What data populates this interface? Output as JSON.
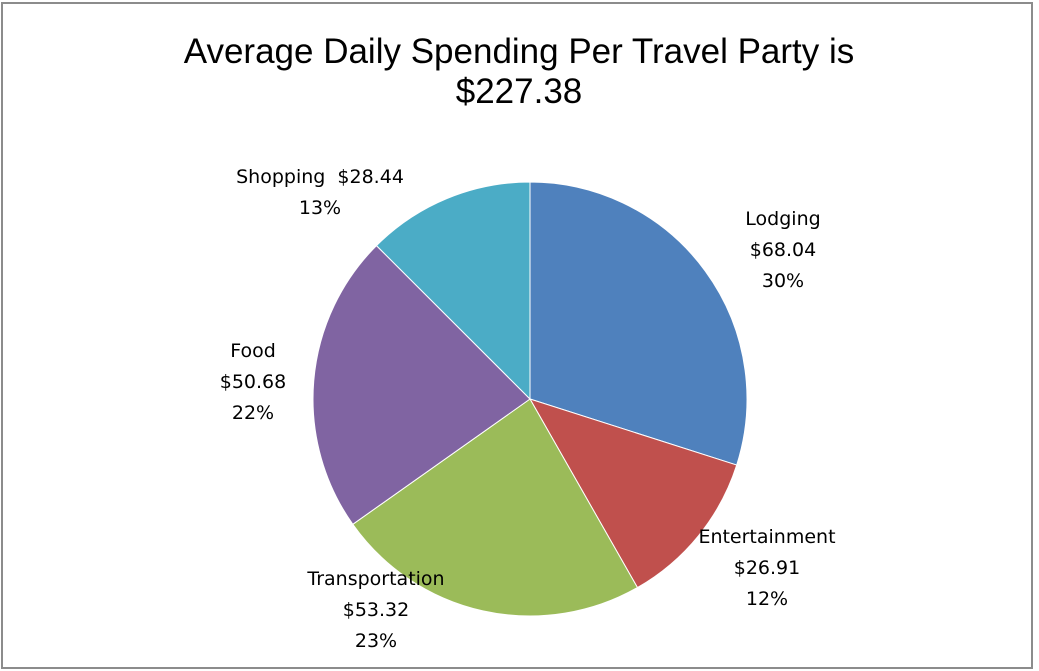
{
  "chart_data": {
    "type": "pie",
    "title_lines": [
      "Average Daily Spending Per Travel Party is",
      "$227.38"
    ],
    "slices": [
      {
        "name": "Lodging",
        "value": 68.04,
        "value_label": "$68.04",
        "percent_label": "30%",
        "color": "#4f81bd"
      },
      {
        "name": "Entertainment",
        "value": 26.91,
        "value_label": "$26.91",
        "percent_label": "12%",
        "color": "#c0504d"
      },
      {
        "name": "Transportation",
        "value": 53.32,
        "value_label": "$53.32",
        "percent_label": "23%",
        "color": "#9bbb59"
      },
      {
        "name": "Food",
        "value": 50.68,
        "value_label": "$50.68",
        "percent_label": "22%",
        "color": "#8064a2"
      },
      {
        "name": "Shopping",
        "value": 28.44,
        "value_label": "$28.44",
        "percent_label": "13%",
        "color": "#4bacc6"
      }
    ],
    "start_angle": "12 o'clock",
    "direction": "clockwise",
    "legend": "none"
  }
}
